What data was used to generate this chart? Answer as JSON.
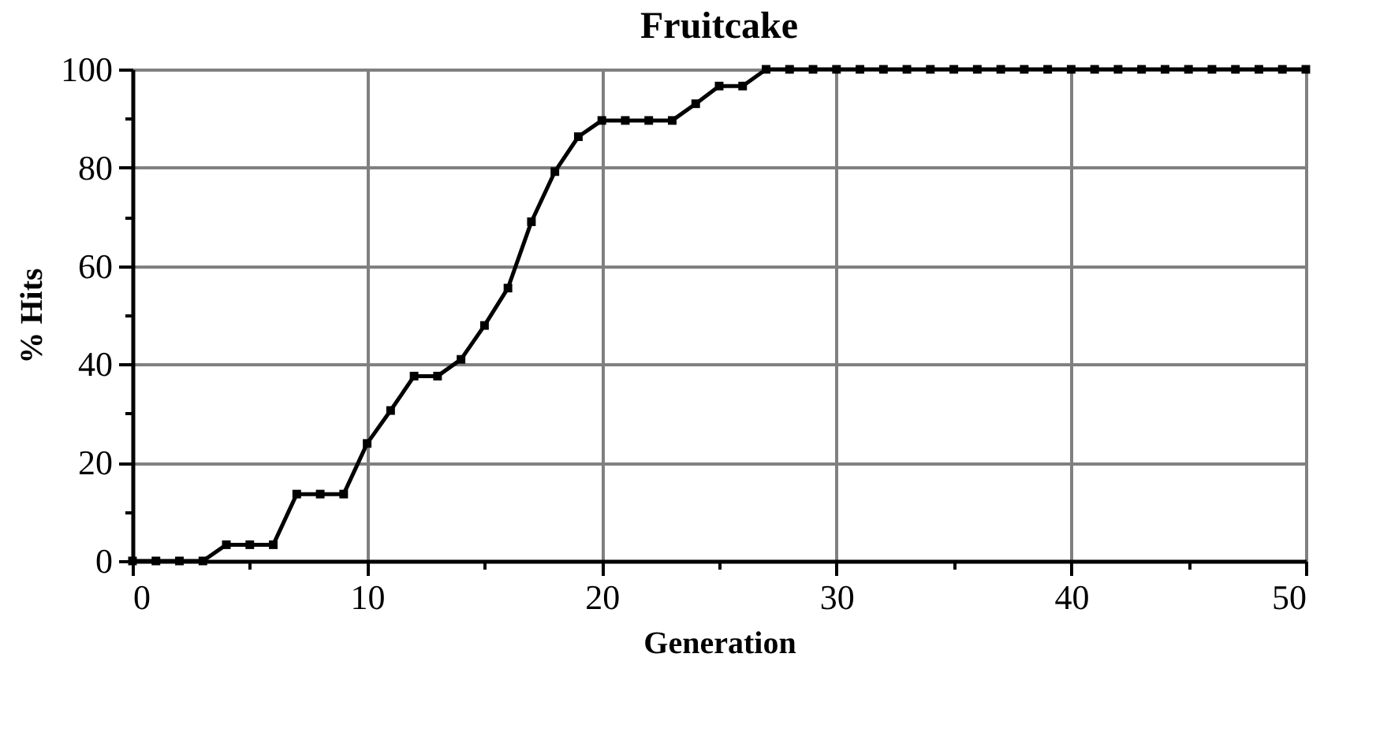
{
  "chart_data": {
    "type": "line",
    "title": "Fruitcake",
    "xlabel": "Generation",
    "ylabel": "% Hits",
    "x": [
      0,
      1,
      2,
      3,
      4,
      5,
      6,
      7,
      8,
      9,
      10,
      11,
      12,
      13,
      14,
      15,
      16,
      17,
      18,
      19,
      20,
      21,
      22,
      23,
      24,
      25,
      26,
      27,
      28,
      29,
      30,
      31,
      32,
      33,
      34,
      35,
      36,
      37,
      38,
      39,
      40,
      41,
      42,
      43,
      44,
      45,
      46,
      47,
      48,
      49,
      50
    ],
    "series": [
      {
        "color": "#000000",
        "values": [
          0,
          0,
          0,
          0,
          3.3,
          3.3,
          3.3,
          13.6,
          13.6,
          13.6,
          23.9,
          30.6,
          37.6,
          37.6,
          41,
          47.9,
          55.5,
          69,
          79.2,
          86.3,
          89.6,
          89.6,
          89.6,
          89.6,
          93,
          96.6,
          96.6,
          100,
          100,
          100,
          100,
          100,
          100,
          100,
          100,
          100,
          100,
          100,
          100,
          100,
          100,
          100,
          100,
          100,
          100,
          100,
          100,
          100,
          100,
          100,
          100
        ]
      }
    ],
    "xlim": [
      0,
      50
    ],
    "ylim": [
      0,
      100
    ],
    "xticks": [
      0,
      {
        "value": 5,
        "label": null
      },
      10,
      {
        "value": 15,
        "label": null
      },
      20,
      {
        "value": 25,
        "label": null
      },
      30,
      {
        "value": 35,
        "label": null
      },
      40,
      {
        "value": 45,
        "label": null
      },
      50
    ],
    "yticks": [
      0,
      {
        "value": 10,
        "label": null
      },
      20,
      {
        "value": 30,
        "label": null
      },
      40,
      {
        "value": 50,
        "label": null
      },
      60,
      {
        "value": 70,
        "label": null
      },
      80,
      {
        "value": 90,
        "label": null
      },
      100
    ],
    "grid": true,
    "marker": "square",
    "line_style": "solid"
  }
}
